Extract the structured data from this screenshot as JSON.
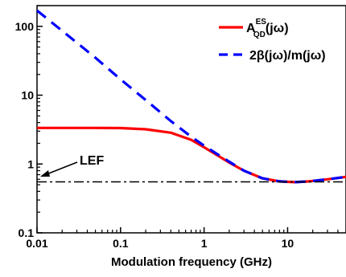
{
  "chart_data": {
    "type": "line",
    "title": "",
    "xlabel": "Modulation frequency (GHz)",
    "ylabel": "",
    "xscale": "log",
    "yscale": "log",
    "xlim": [
      0.01,
      50
    ],
    "ylim": [
      0.1,
      200
    ],
    "grid": false,
    "legend_position": "top-right",
    "xtick_labels": [
      "0.01",
      "0.1",
      "1",
      "10"
    ],
    "ytick_labels": [
      "0.1",
      "1",
      "10",
      "100"
    ],
    "series": [
      {
        "legend_main": "A",
        "legend_sup": "ES",
        "legend_sub": "QD",
        "legend_suffix": "(jω)",
        "color": "#ff0000",
        "style": "solid",
        "x": [
          0.01,
          0.05,
          0.1,
          0.2,
          0.4,
          0.7,
          1,
          1.5,
          2,
          3,
          5,
          8,
          12,
          18,
          30,
          50
        ],
        "y": [
          3.35,
          3.35,
          3.33,
          3.2,
          2.85,
          2.25,
          1.75,
          1.3,
          1.05,
          0.8,
          0.62,
          0.56,
          0.545,
          0.56,
          0.6,
          0.65
        ]
      },
      {
        "legend_main": "2β(jω)/m(jω)",
        "color": "#0000ff",
        "style": "dashed",
        "x": [
          0.01,
          0.05,
          0.1,
          0.2,
          0.4,
          0.7,
          1,
          1.5,
          2,
          3,
          5,
          8,
          12,
          18,
          30,
          50
        ],
        "y": [
          170,
          35,
          17,
          8.5,
          4.2,
          2.5,
          1.85,
          1.35,
          1.08,
          0.8,
          0.62,
          0.56,
          0.545,
          0.56,
          0.6,
          0.65
        ]
      },
      {
        "legend_main": "",
        "color": "#000000",
        "style": "dash-dot",
        "x": [
          0.01,
          50
        ],
        "y": [
          0.55,
          0.55
        ]
      }
    ],
    "annotations": [
      {
        "text": "LEF",
        "arrow_to": [
          0.01,
          0.8
        ]
      }
    ]
  }
}
